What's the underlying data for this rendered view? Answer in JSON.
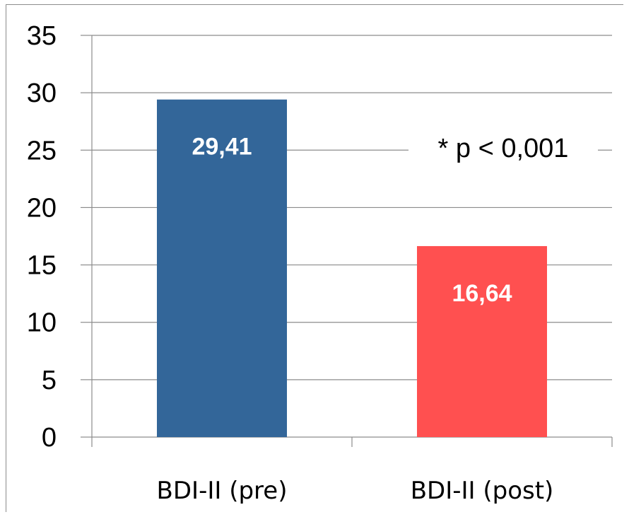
{
  "chart_data": {
    "type": "bar",
    "categories": [
      "BDI-II (pre)",
      "BDI-II (post)"
    ],
    "values": [
      29.41,
      16.64
    ],
    "data_labels": [
      "29,41",
      "16,64"
    ],
    "colors": [
      "#336699",
      "#FF5050"
    ],
    "ylim": [
      0,
      35
    ],
    "yticks": [
      0,
      5,
      10,
      15,
      20,
      25,
      30,
      35
    ],
    "grid": true,
    "annotation": "* p < 0,001",
    "title": "",
    "xlabel": "",
    "ylabel": ""
  }
}
